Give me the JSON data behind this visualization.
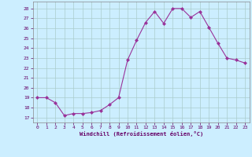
{
  "x": [
    0,
    1,
    2,
    3,
    4,
    5,
    6,
    7,
    8,
    9,
    10,
    11,
    12,
    13,
    14,
    15,
    16,
    17,
    18,
    19,
    20,
    21,
    22,
    23
  ],
  "y": [
    19.0,
    19.0,
    18.5,
    17.2,
    17.4,
    17.4,
    17.5,
    17.7,
    18.3,
    19.0,
    22.8,
    24.8,
    26.6,
    27.7,
    26.5,
    28.0,
    28.0,
    27.1,
    27.7,
    26.1,
    24.5,
    23.0,
    22.8,
    22.5
  ],
  "line_color": "#993399",
  "marker": "D",
  "marker_size": 2,
  "bg_color": "#cceeff",
  "grid_color": "#aacccc",
  "xlabel": "Windchill (Refroidissement éolien,°C)",
  "ylabel_ticks": [
    17,
    18,
    19,
    20,
    21,
    22,
    23,
    24,
    25,
    26,
    27,
    28
  ],
  "ylim": [
    16.5,
    28.7
  ],
  "xlim": [
    -0.5,
    23.5
  ],
  "xtick_labels": [
    "0",
    "1",
    "2",
    "3",
    "4",
    "5",
    "6",
    "7",
    "8",
    "9",
    "10",
    "11",
    "12",
    "13",
    "14",
    "15",
    "16",
    "17",
    "18",
    "19",
    "20",
    "21",
    "22",
    "23"
  ]
}
